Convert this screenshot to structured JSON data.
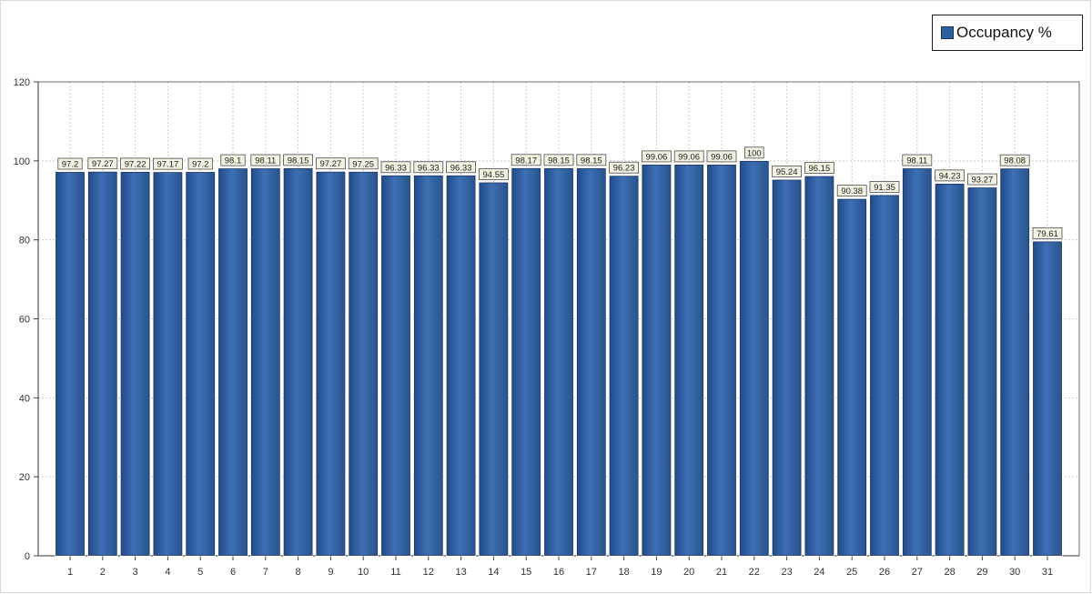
{
  "chart_data": {
    "type": "bar",
    "categories": [
      "1",
      "2",
      "3",
      "4",
      "5",
      "6",
      "7",
      "8",
      "9",
      "10",
      "11",
      "12",
      "13",
      "14",
      "15",
      "16",
      "17",
      "18",
      "19",
      "20",
      "21",
      "22",
      "23",
      "24",
      "25",
      "26",
      "27",
      "28",
      "29",
      "30",
      "31"
    ],
    "series": [
      {
        "name": "Occupancy %",
        "values": [
          97.2,
          97.27,
          97.22,
          97.17,
          97.2,
          98.1,
          98.11,
          98.15,
          97.27,
          97.25,
          96.33,
          96.33,
          96.33,
          94.55,
          98.17,
          98.15,
          98.15,
          96.23,
          99.06,
          99.06,
          99.06,
          100,
          95.24,
          96.15,
          90.38,
          91.35,
          98.11,
          94.23,
          93.27,
          98.08,
          79.61
        ],
        "labels": [
          "97.2",
          "97.27",
          "97.22",
          "97.17",
          "97.2",
          "98.1",
          "98.11",
          "98.15",
          "97.27",
          "97.25",
          "96.33",
          "96.33",
          "96.33",
          "94.55",
          "98.17",
          "98.15",
          "98.15",
          "96.23",
          "99.06",
          "99.06",
          "99.06",
          "100",
          "95.24",
          "96.15",
          "90.38",
          "91.35",
          "98.11",
          "94.23",
          "93.27",
          "98.08",
          "79.61"
        ]
      }
    ],
    "ylim": [
      0,
      120
    ],
    "yticks": [
      "0",
      "20",
      "40",
      "60",
      "80",
      "100",
      "120"
    ],
    "title": "",
    "xlabel": "",
    "ylabel": "",
    "grid": true,
    "legend_position": "top-right",
    "colors": {
      "bar": "#2f5fa3",
      "bar_dark": "#1d3f78",
      "bar_light": "#4a7cc2",
      "label_bg": "#f3f1e2",
      "grid": "#cfcfcf"
    }
  }
}
